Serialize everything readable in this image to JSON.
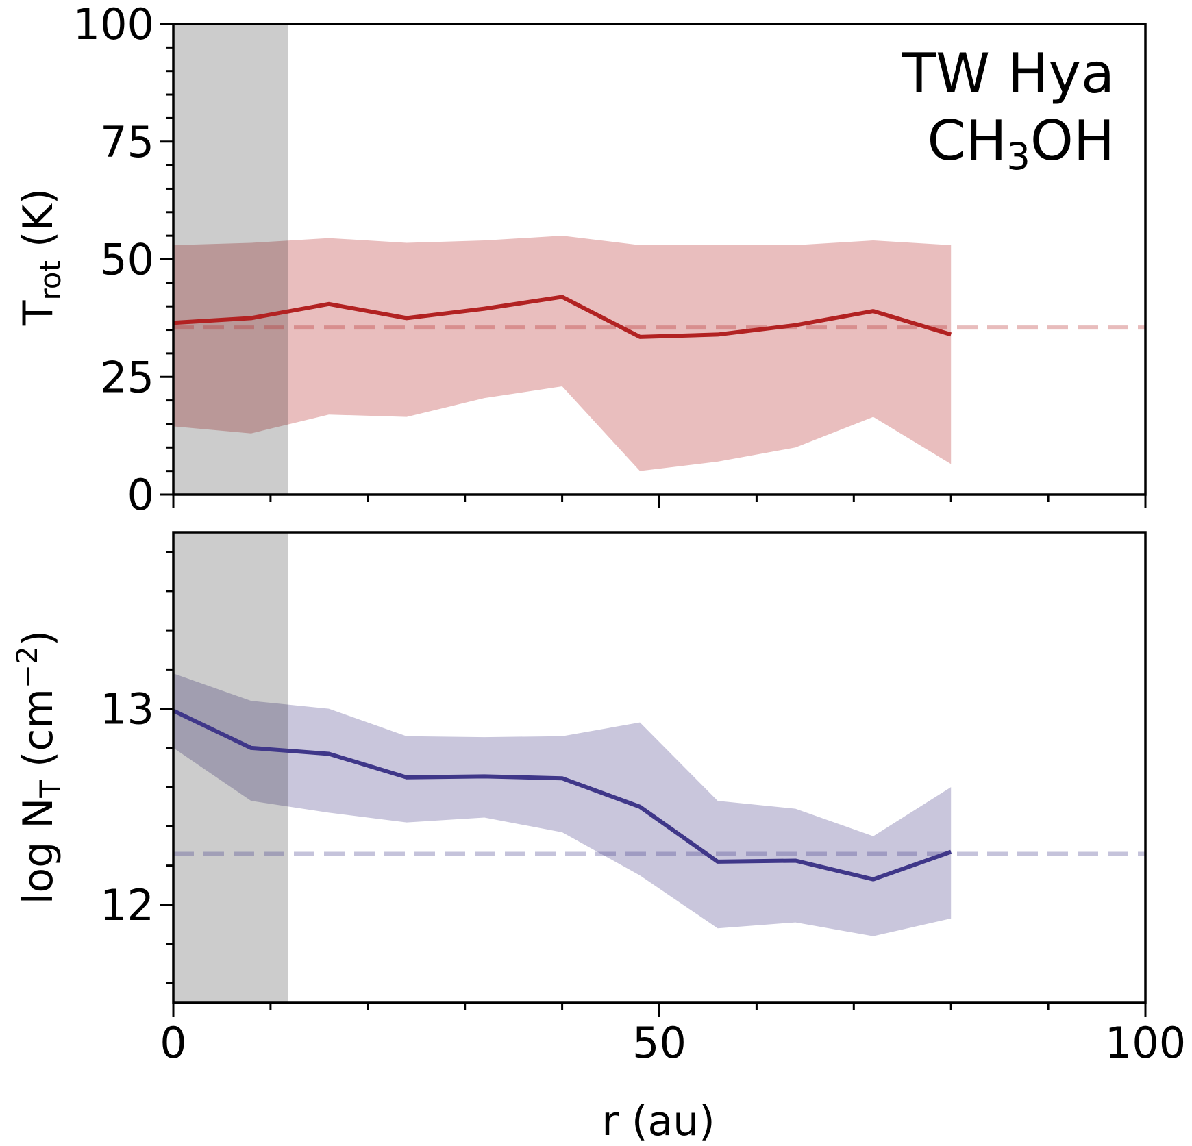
{
  "chart_data": [
    {
      "type": "line",
      "panel": "top",
      "annotation": {
        "target": "TW Hya",
        "molecule_main": "CH",
        "molecule_sub": "3",
        "molecule_end": "OH"
      },
      "ylabel_main": "T",
      "ylabel_sub": "rot",
      "ylabel_unit": " (K)",
      "ylim": [
        0,
        100
      ],
      "xlim": [
        0,
        100
      ],
      "yticks": [
        0,
        25,
        50,
        75,
        100
      ],
      "ytick_labels": [
        "0",
        "25",
        "50",
        "75",
        "100"
      ],
      "shaded_region": {
        "x_from": 0,
        "x_to": 11.8
      },
      "reference_line": 35.5,
      "line_color": "#b22222",
      "band_color": "#e8babb",
      "series": [
        {
          "name": "T_rot",
          "x": [
            0,
            8,
            16,
            24,
            32,
            40,
            48,
            56,
            64,
            72,
            80
          ],
          "y": [
            36.5,
            37.5,
            40.5,
            37.5,
            39.5,
            42.0,
            33.5,
            34.0,
            36.0,
            39.0,
            34.0
          ],
          "y_upper": [
            53.0,
            53.5,
            54.5,
            53.5,
            54.0,
            55.0,
            53.0,
            53.0,
            53.0,
            54.0,
            53.0
          ],
          "y_lower": [
            14.5,
            13.0,
            17.0,
            16.5,
            20.5,
            23.0,
            5.0,
            7.0,
            10.0,
            16.5,
            6.5
          ]
        }
      ]
    },
    {
      "type": "line",
      "panel": "bottom",
      "ylabel_main": "log N",
      "ylabel_sub": "T",
      "ylabel_unit": " (cm",
      "ylabel_sup": "−2",
      "ylabel_close": ")",
      "ylim": [
        11.5,
        13.9
      ],
      "xlim": [
        0,
        100
      ],
      "yticks": [
        12,
        13
      ],
      "ytick_labels": [
        "12",
        "13"
      ],
      "ymajor": [
        12,
        13
      ],
      "yminor": [
        11.6,
        11.8,
        12.2,
        12.4,
        12.6,
        12.8,
        13.2,
        13.4,
        13.6,
        13.8
      ],
      "shaded_region": {
        "x_from": 0,
        "x_to": 11.8
      },
      "reference_line": 12.26,
      "line_color": "#3f3789",
      "band_color": "#c6c3da",
      "series": [
        {
          "name": "log N_T",
          "x": [
            0,
            8,
            16,
            24,
            32,
            40,
            48,
            56,
            64,
            72,
            80
          ],
          "y": [
            12.99,
            12.8,
            12.77,
            12.65,
            12.655,
            12.645,
            12.5,
            12.22,
            12.225,
            12.13,
            12.27
          ],
          "y_upper": [
            13.18,
            13.04,
            13.0,
            12.86,
            12.855,
            12.86,
            12.93,
            12.53,
            12.49,
            12.35,
            12.6
          ],
          "y_lower": [
            12.8,
            12.53,
            12.47,
            12.42,
            12.445,
            12.37,
            12.15,
            11.88,
            11.91,
            11.84,
            11.93
          ]
        }
      ]
    }
  ],
  "xaxis": {
    "label": "r (au)",
    "ticks": [
      0,
      50,
      100
    ],
    "tick_labels": [
      "0",
      "50",
      "100"
    ]
  }
}
